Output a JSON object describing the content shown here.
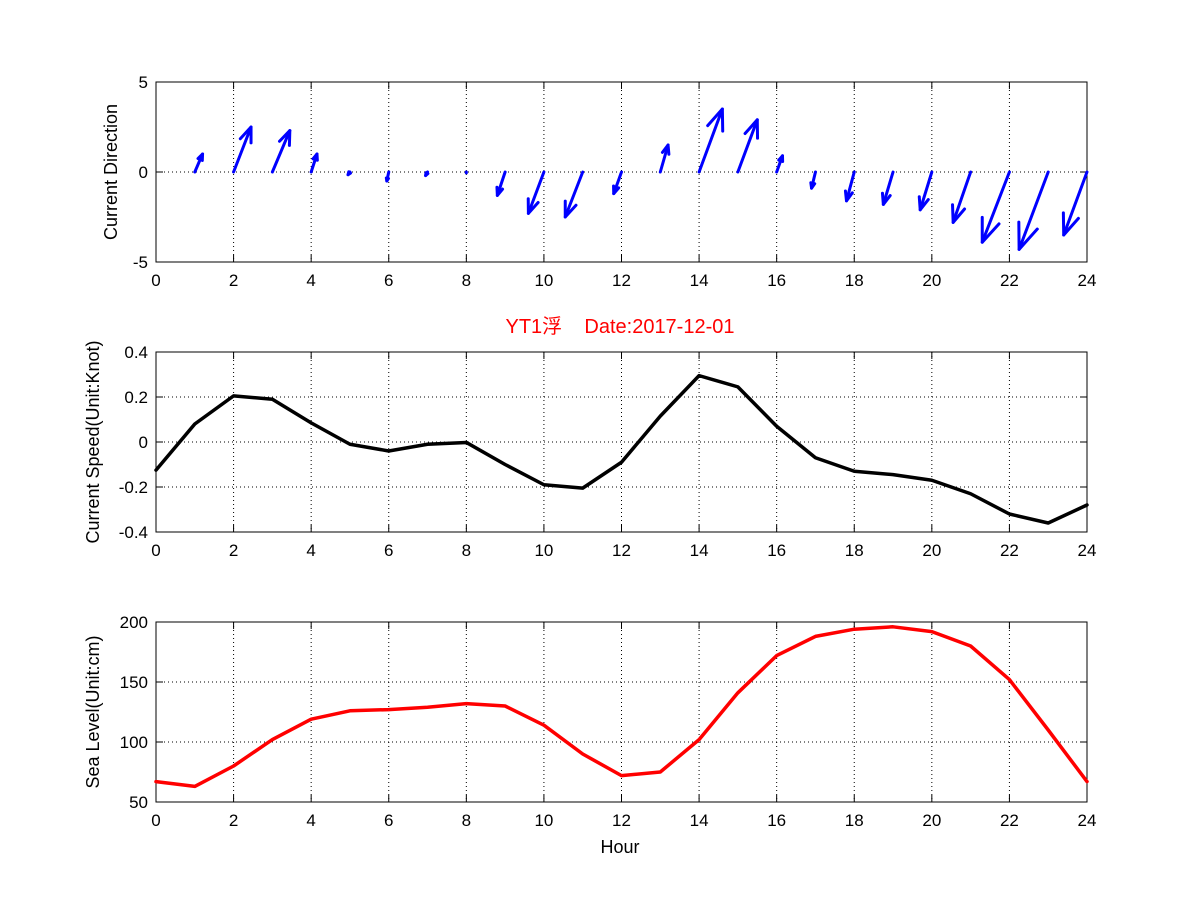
{
  "chart_data": [
    {
      "type": "quiver",
      "ylabel": "Current Direction",
      "xlim": [
        0,
        24
      ],
      "ylim": [
        -5,
        5
      ],
      "xticks": [
        "0",
        "2",
        "4",
        "6",
        "8",
        "10",
        "12",
        "14",
        "16",
        "18",
        "20",
        "22",
        "24"
      ],
      "yticks": [
        "-5",
        "0",
        "5"
      ],
      "grid": true,
      "color": "#0000ff",
      "arrows": [
        {
          "x": 1,
          "u": 0.2,
          "v": 1.0
        },
        {
          "x": 2,
          "u": 0.45,
          "v": 2.5
        },
        {
          "x": 3,
          "u": 0.45,
          "v": 2.3
        },
        {
          "x": 4,
          "u": 0.15,
          "v": 1.0
        },
        {
          "x": 5,
          "u": -0.05,
          "v": -0.15
        },
        {
          "x": 6,
          "u": -0.05,
          "v": -0.5
        },
        {
          "x": 7,
          "u": -0.05,
          "v": -0.2
        },
        {
          "x": 8,
          "u": 0.0,
          "v": -0.05
        },
        {
          "x": 9,
          "u": -0.2,
          "v": -1.3
        },
        {
          "x": 10,
          "u": -0.4,
          "v": -2.3
        },
        {
          "x": 11,
          "u": -0.45,
          "v": -2.5
        },
        {
          "x": 12,
          "u": -0.2,
          "v": -1.2
        },
        {
          "x": 13,
          "u": 0.2,
          "v": 1.5
        },
        {
          "x": 14,
          "u": 0.6,
          "v": 3.5
        },
        {
          "x": 15,
          "u": 0.5,
          "v": 2.9
        },
        {
          "x": 16,
          "u": 0.15,
          "v": 0.9
        },
        {
          "x": 17,
          "u": -0.1,
          "v": -0.9
        },
        {
          "x": 18,
          "u": -0.2,
          "v": -1.6
        },
        {
          "x": 19,
          "u": -0.25,
          "v": -1.8
        },
        {
          "x": 20,
          "u": -0.3,
          "v": -2.1
        },
        {
          "x": 21,
          "u": -0.45,
          "v": -2.8
        },
        {
          "x": 22,
          "u": -0.7,
          "v": -3.9
        },
        {
          "x": 23,
          "u": -0.75,
          "v": -4.3
        },
        {
          "x": 24,
          "u": -0.6,
          "v": -3.5
        }
      ]
    },
    {
      "type": "line",
      "title": "YT1浮    Date:2017-12-01",
      "ylabel": "Current Speed(Unit:Knot)",
      "xlim": [
        0,
        24
      ],
      "ylim": [
        -0.4,
        0.4
      ],
      "xticks": [
        "0",
        "2",
        "4",
        "6",
        "8",
        "10",
        "12",
        "14",
        "16",
        "18",
        "20",
        "22",
        "24"
      ],
      "yticks": [
        "-0.4",
        "-0.2",
        "0",
        "0.2",
        "0.4"
      ],
      "grid": true,
      "color": "#000000",
      "x": [
        0,
        1,
        2,
        3,
        4,
        5,
        6,
        7,
        8,
        9,
        10,
        11,
        12,
        13,
        14,
        15,
        16,
        17,
        18,
        19,
        20,
        21,
        22,
        23,
        24
      ],
      "y": [
        -0.125,
        0.08,
        0.205,
        0.19,
        0.085,
        -0.01,
        -0.04,
        -0.01,
        -0.002,
        -0.1,
        -0.19,
        -0.205,
        -0.09,
        0.115,
        0.295,
        0.245,
        0.07,
        -0.07,
        -0.13,
        -0.145,
        -0.17,
        -0.23,
        -0.32,
        -0.36,
        -0.28
      ]
    },
    {
      "type": "line",
      "xlabel": "Hour",
      "ylabel": "Sea Level(Unit:cm)",
      "xlim": [
        0,
        24
      ],
      "ylim": [
        50,
        200
      ],
      "xticks": [
        "0",
        "2",
        "4",
        "6",
        "8",
        "10",
        "12",
        "14",
        "16",
        "18",
        "20",
        "22",
        "24"
      ],
      "yticks": [
        "50",
        "100",
        "150",
        "200"
      ],
      "grid": true,
      "color": "#ff0000",
      "x": [
        0,
        1,
        2,
        3,
        4,
        5,
        6,
        7,
        8,
        9,
        10,
        11,
        12,
        13,
        14,
        15,
        16,
        17,
        18,
        19,
        20,
        21,
        22,
        23,
        24
      ],
      "y": [
        67,
        63,
        80,
        102,
        119,
        126,
        127,
        129,
        132,
        130,
        114,
        90,
        72,
        75,
        102,
        141,
        172,
        188,
        194,
        196,
        192,
        180,
        152,
        110,
        67
      ]
    }
  ]
}
